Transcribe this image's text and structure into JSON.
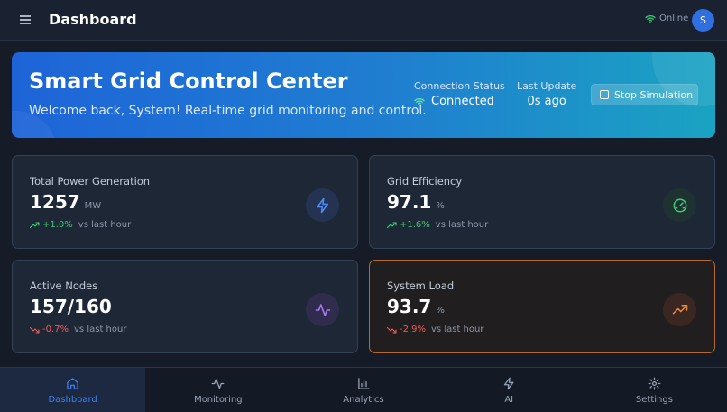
{
  "header": {
    "title": "Dashboard",
    "status": "Online",
    "avatar_initial": "S"
  },
  "hero": {
    "title": "Smart Grid Control Center",
    "subtitle": "Welcome back, System! Real-time grid monitoring and control.",
    "connection_label": "Connection Status",
    "connection_value": "Connected",
    "update_label": "Last Update",
    "update_value": "0s ago",
    "stop_button": "Stop Simulation"
  },
  "cards": [
    {
      "label": "Total Power Generation",
      "value": "1257",
      "unit": "MW",
      "trend": "+1.0%",
      "trend_dir": "up",
      "trend_suffix": "vs last hour",
      "icon": "lightning-icon",
      "accent": "#4f8ef7"
    },
    {
      "label": "Grid Efficiency",
      "value": "97.1",
      "unit": "%",
      "trend": "+1.6%",
      "trend_dir": "up",
      "trend_suffix": "vs last hour",
      "icon": "gauge-icon",
      "accent": "#3ecf72"
    },
    {
      "label": "Active Nodes",
      "value": "157/160",
      "unit": "",
      "trend": "-0.7%",
      "trend_dir": "down",
      "trend_suffix": "vs last hour",
      "icon": "activity-icon",
      "accent": "#b07cf5"
    },
    {
      "label": "System Load",
      "value": "93.7",
      "unit": "%",
      "trend": "-2.9%",
      "trend_dir": "down",
      "trend_suffix": "vs last hour",
      "icon": "trending-up-icon",
      "accent": "#f08a3a"
    }
  ],
  "nav": [
    {
      "label": "Dashboard",
      "icon": "home-icon",
      "active": true
    },
    {
      "label": "Monitoring",
      "icon": "activity-icon",
      "active": false
    },
    {
      "label": "Analytics",
      "icon": "bar-chart-icon",
      "active": false
    },
    {
      "label": "AI",
      "icon": "lightning-icon",
      "active": false
    },
    {
      "label": "Settings",
      "icon": "gear-icon",
      "active": false
    }
  ],
  "colors": {
    "background": "#151c28",
    "primary": "#2f6fe0",
    "success": "#3ecf72",
    "danger": "#ef5a5a",
    "warning_border": "#b9682a"
  }
}
